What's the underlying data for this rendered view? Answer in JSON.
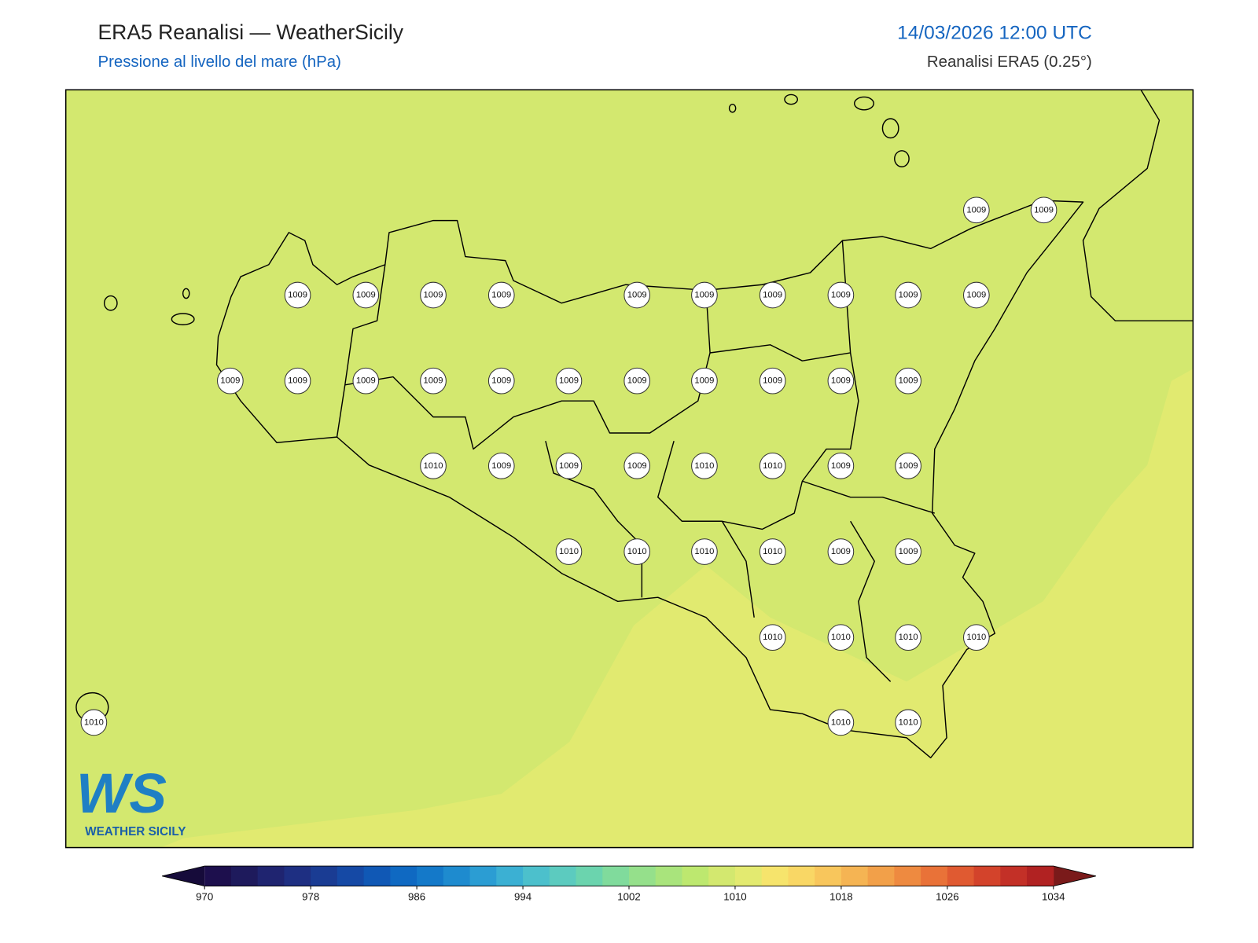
{
  "header": {
    "title": "ERA5 Reanalisi — WeatherSicily",
    "subtitle": "Pressione al livello del mare (hPa)",
    "date": "14/03/2026 12:00 UTC",
    "source": "Reanalisi ERA5 (0.25°)"
  },
  "stations": [
    1009,
    1009,
    1009,
    1009,
    1009,
    1009,
    1009,
    1009,
    1009,
    1009,
    1009,
    1009,
    1009,
    1009,
    1009,
    1009,
    1009,
    1009,
    1009,
    1009,
    1009,
    1009,
    1009,
    1010,
    1009,
    1009,
    1009,
    1010,
    1010,
    1009,
    1009,
    1010,
    1010,
    1010,
    1010,
    1009,
    1009,
    1010,
    1010,
    1010,
    1010,
    1010,
    1010,
    1010
  ],
  "colorbar": {
    "ticks": [
      970,
      978,
      986,
      994,
      1002,
      1010,
      1018,
      1026,
      1034
    ],
    "step": 2,
    "colors": [
      "#1d0f4d",
      "#1e1a5c",
      "#1f2470",
      "#1e2f82",
      "#1a3c93",
      "#1549a5",
      "#1058b5",
      "#0f69c2",
      "#1479c9",
      "#1e8bcf",
      "#2b9dd3",
      "#3bb0d3",
      "#4cc0cc",
      "#5ccbbf",
      "#6bd4ae",
      "#80db9c",
      "#95e08b",
      "#a9e47c",
      "#bde86f",
      "#d3e86f",
      "#e3ea70",
      "#f6e46c",
      "#f9d765",
      "#f8c65c",
      "#f5b453",
      "#f2a049",
      "#ee8a40",
      "#e97238",
      "#e05a31",
      "#d3432b",
      "#c33027",
      "#b12222"
    ],
    "under_color": "#160b3a",
    "over_color": "#7a1a1a"
  },
  "logo": {
    "letters": "WS",
    "text": "WEATHER SICILY"
  }
}
